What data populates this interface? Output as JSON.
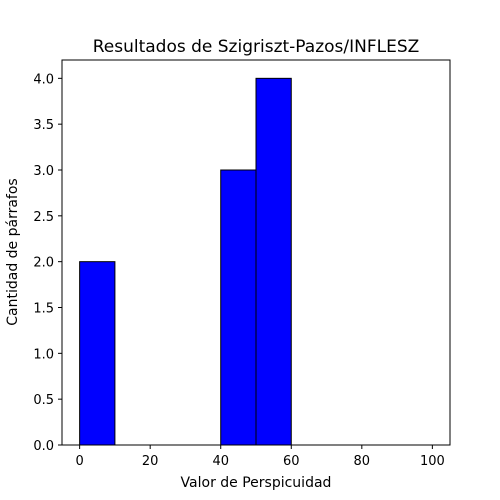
{
  "chart_data": {
    "type": "bar",
    "title": "Resultados de Szigriszt-Pazos/INFLESZ",
    "xlabel": "Valor de Perspicuidad",
    "ylabel": "Cantidad de párrafos",
    "bins": [
      {
        "x0": 0,
        "x1": 10,
        "value": 2
      },
      {
        "x0": 40,
        "x1": 50,
        "value": 3
      },
      {
        "x0": 50,
        "x1": 60,
        "value": 4
      }
    ],
    "xlim": [
      -5,
      105
    ],
    "ylim": [
      0,
      4.2
    ],
    "xticks": [
      0,
      20,
      40,
      60,
      80,
      100
    ],
    "yticks": [
      0.0,
      0.5,
      1.0,
      1.5,
      2.0,
      2.5,
      3.0,
      3.5,
      4.0
    ],
    "bar_color": "#0000ff",
    "edge_color": "#000000",
    "grid": false,
    "legend": "none"
  }
}
